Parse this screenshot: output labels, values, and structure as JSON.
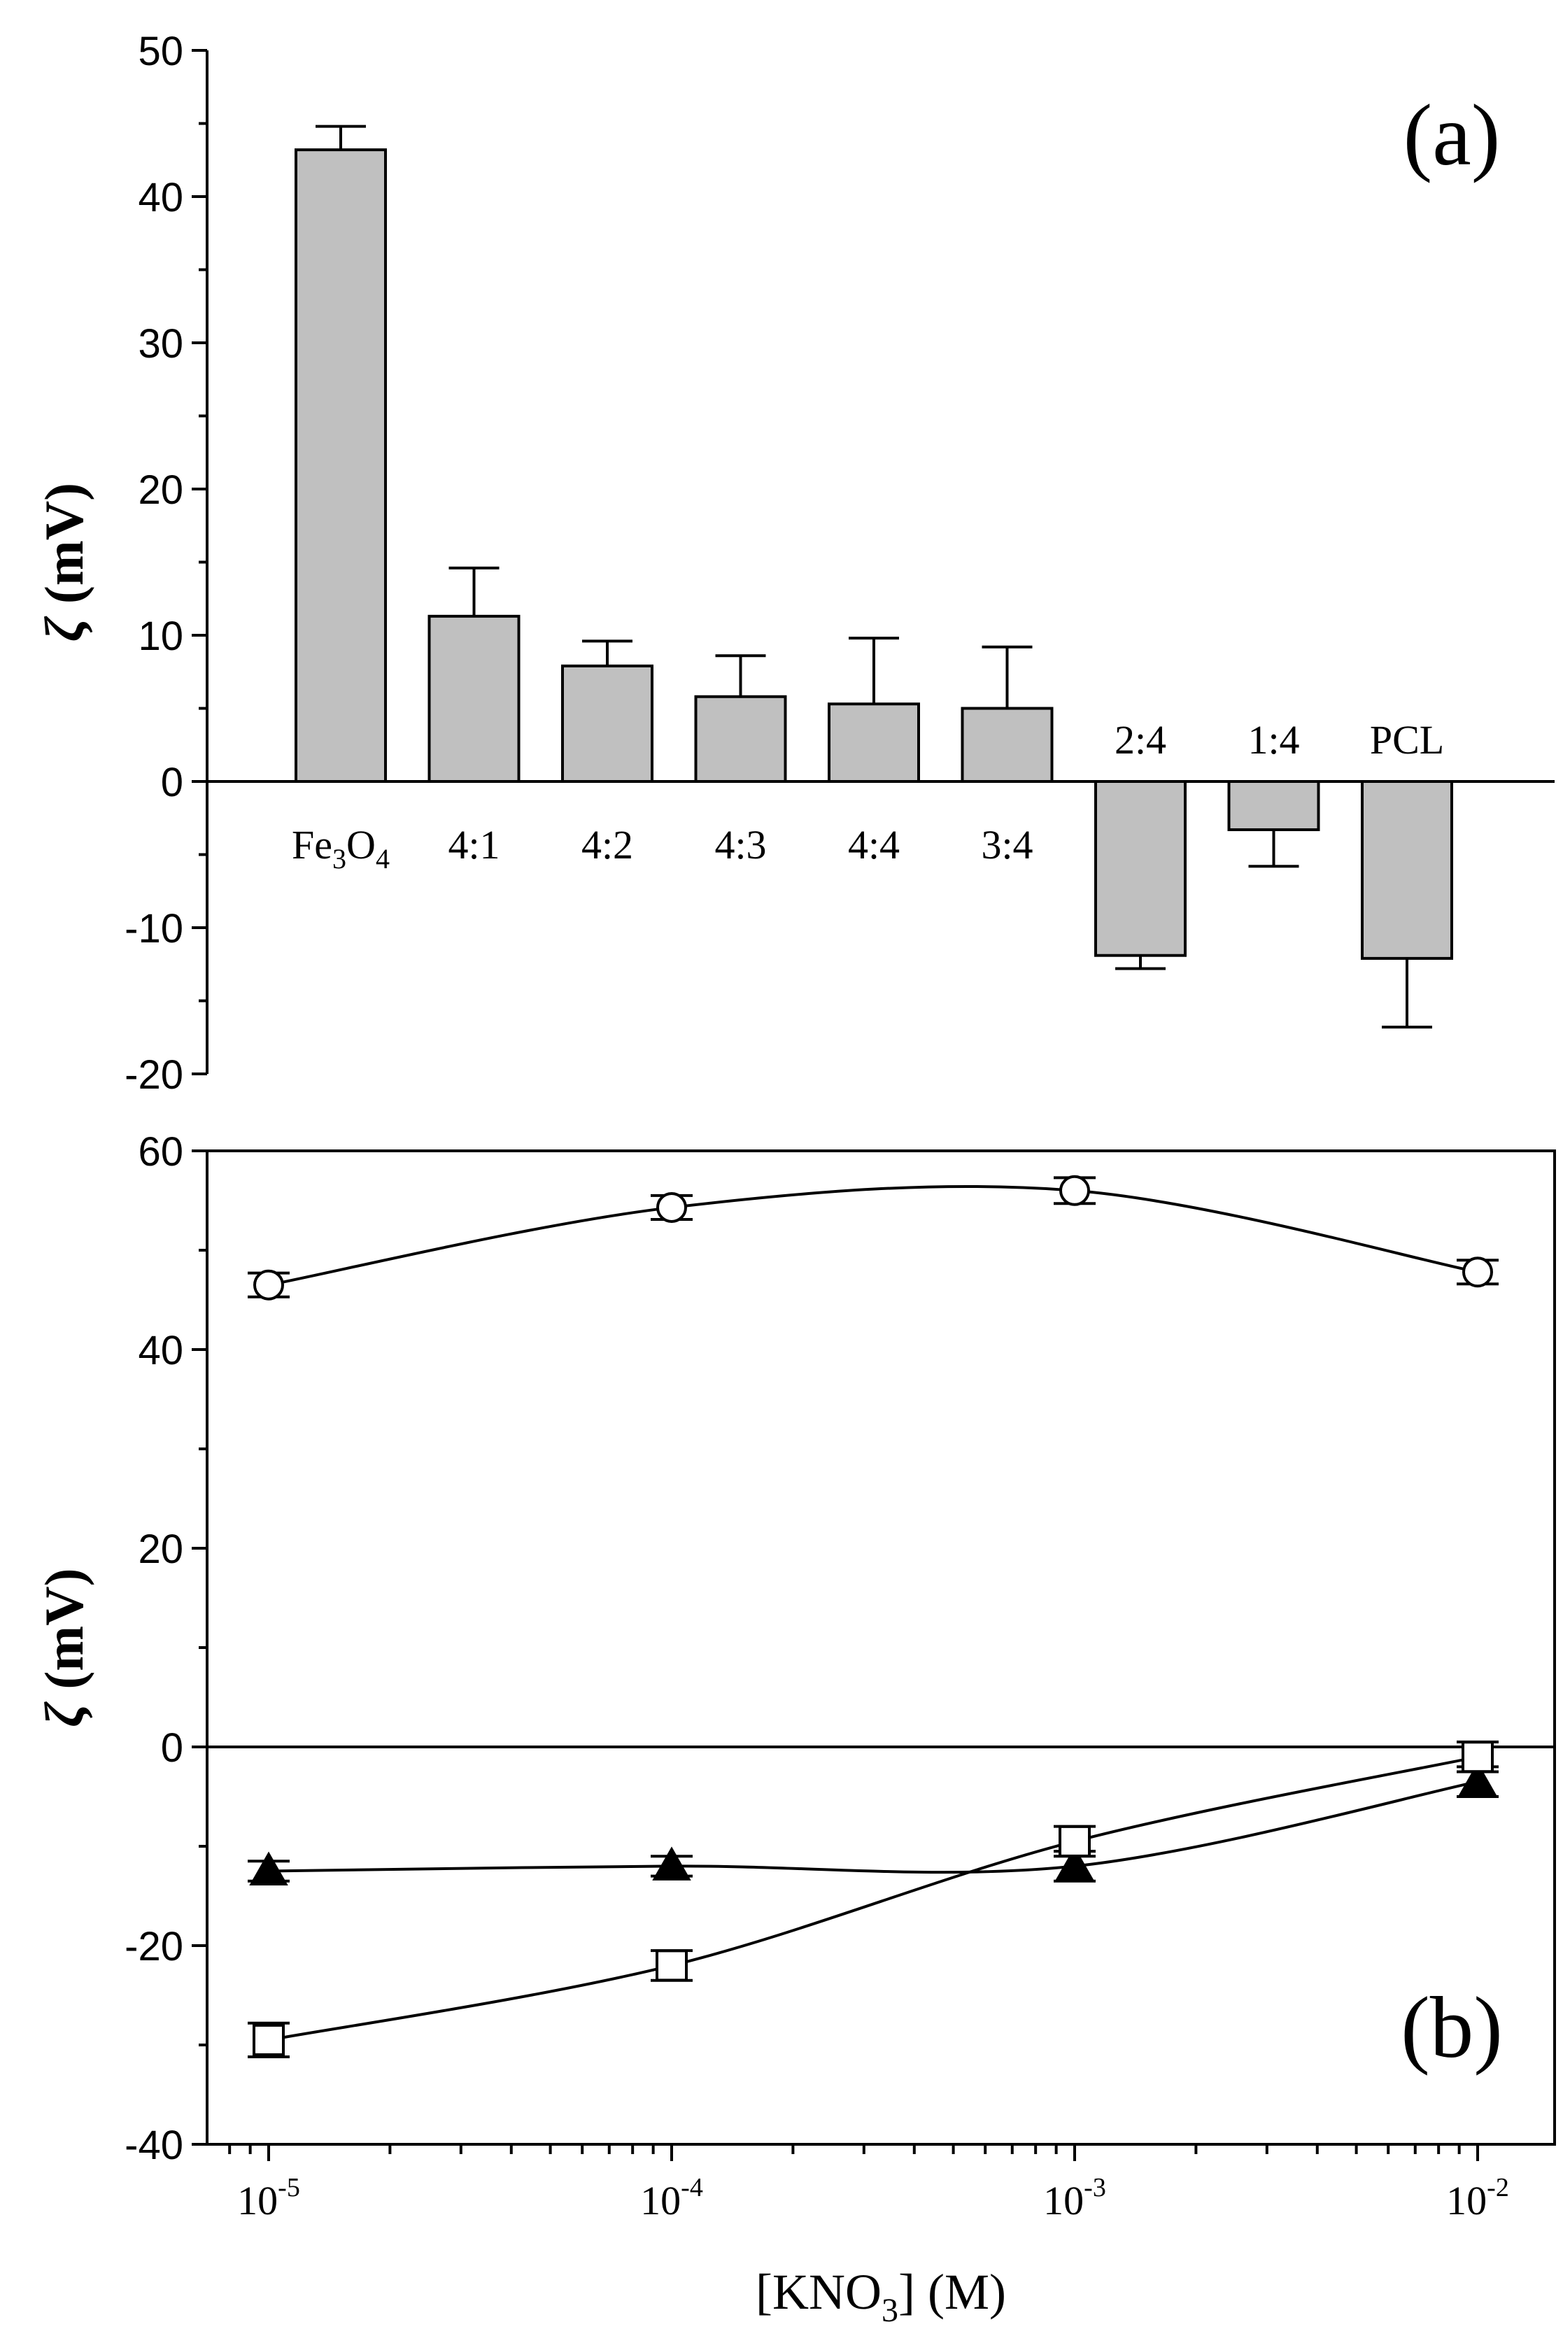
{
  "chart_data": [
    {
      "type": "bar",
      "panel_label": "(a)",
      "ylabel_symbol": "ζ",
      "ylabel_unit": "(mV)",
      "ylim": [
        -20,
        50
      ],
      "yticks": [
        "-20",
        "-10",
        "0",
        "10",
        "20",
        "30",
        "40",
        "50"
      ],
      "categories": [
        {
          "base": "Fe",
          "sub1": "3",
          "mid": "O",
          "sub2": "4",
          "text": "Fe3O4"
        },
        {
          "text": "4:1"
        },
        {
          "text": "4:2"
        },
        {
          "text": "4:3"
        },
        {
          "text": "4:4"
        },
        {
          "text": "3:4"
        },
        {
          "text": "2:4"
        },
        {
          "text": "1:4"
        },
        {
          "text": "PCL"
        }
      ],
      "values": [
        43.2,
        11.3,
        7.9,
        5.8,
        5.3,
        5.0,
        -11.9,
        -3.3,
        -12.1
      ],
      "errors": [
        1.6,
        3.3,
        1.7,
        2.8,
        4.5,
        4.2,
        0.9,
        2.5,
        4.7
      ],
      "bar_color": "#c0c0c0",
      "grid": false
    },
    {
      "type": "line",
      "panel_label": "(b)",
      "ylabel_symbol": "ζ",
      "ylabel_unit": "(mV)",
      "xlabel_pre": "[KNO",
      "xlabel_sub": "3",
      "xlabel_post": "] (M)",
      "x_scale": "log",
      "x": [
        1e-05,
        0.0001,
        0.001,
        0.01
      ],
      "xticks": [
        {
          "base": "10",
          "exp": "-5"
        },
        {
          "base": "10",
          "exp": "-4"
        },
        {
          "base": "10",
          "exp": "-3"
        },
        {
          "base": "10",
          "exp": "-2"
        }
      ],
      "ylim": [
        -40,
        60
      ],
      "yticks": [
        "-40",
        "-20",
        "0",
        "20",
        "40",
        "60"
      ],
      "series": [
        {
          "marker": "circle-open",
          "values": [
            46.5,
            54.3,
            56.0,
            47.8
          ],
          "errors": [
            1.2,
            1.2,
            1.3,
            1.2
          ]
        },
        {
          "marker": "triangle-filled",
          "values": [
            -12.5,
            -12.0,
            -12.0,
            -3.5
          ],
          "errors": [
            1.0,
            1.0,
            1.5,
            1.5
          ]
        },
        {
          "marker": "square-open",
          "values": [
            -29.5,
            -22.0,
            -9.5,
            -1.0
          ],
          "errors": [
            1.7,
            1.5,
            1.5,
            1.5
          ]
        }
      ],
      "grid": false
    }
  ]
}
